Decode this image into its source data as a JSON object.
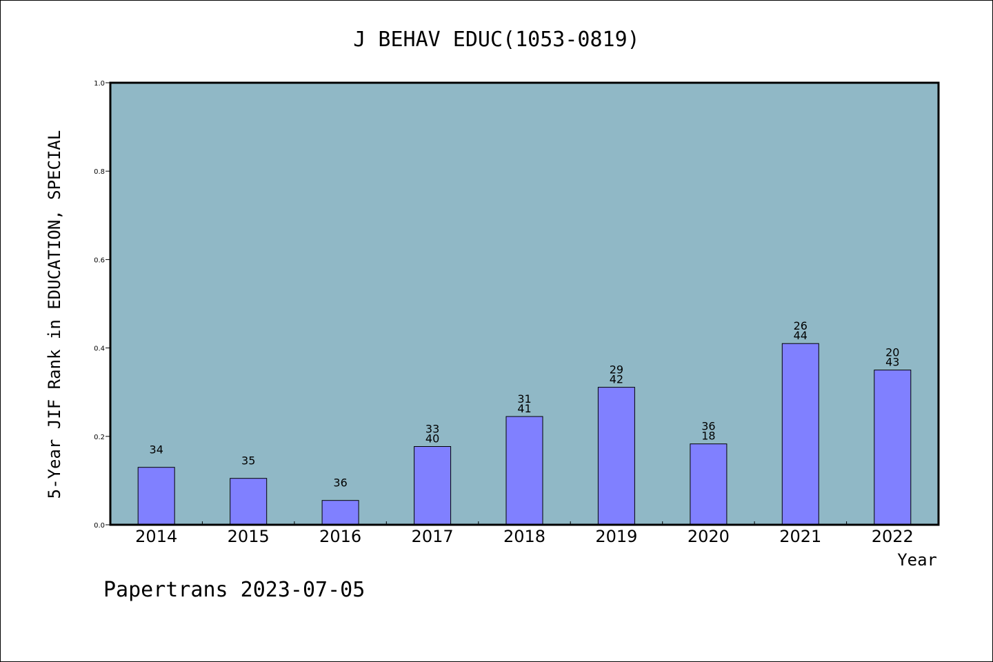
{
  "chart_data": {
    "type": "bar",
    "title": "J BEHAV EDUC(1053-0819)",
    "xlabel": "Year",
    "ylabel": "5-Year JIF Rank in EDUCATION, SPECIAL",
    "categories": [
      "2014",
      "2015",
      "2016",
      "2017",
      "2018",
      "2019",
      "2020",
      "2021",
      "2022"
    ],
    "values": [
      0.13,
      0.105,
      0.055,
      0.177,
      0.245,
      0.311,
      0.183,
      0.41,
      0.35
    ],
    "bar_labels": [
      [
        "34"
      ],
      [
        "35"
      ],
      [
        "36"
      ],
      [
        "33",
        "40"
      ],
      [
        "31",
        "41"
      ],
      [
        "29",
        "42"
      ],
      [
        "36",
        "18"
      ],
      [
        "26",
        "44"
      ],
      [
        "20",
        "43"
      ]
    ],
    "ylim": [
      0,
      1.0
    ],
    "yticks": [
      "0.0",
      "0.2",
      "0.4",
      "0.6",
      "0.8",
      "1.0"
    ],
    "grid": false,
    "colors": {
      "plot_background": "#90b8c6",
      "bar_fill": "#8080ff",
      "bar_stroke": "#000000"
    }
  },
  "footer": {
    "text": "Papertrans 2023-07-05"
  }
}
